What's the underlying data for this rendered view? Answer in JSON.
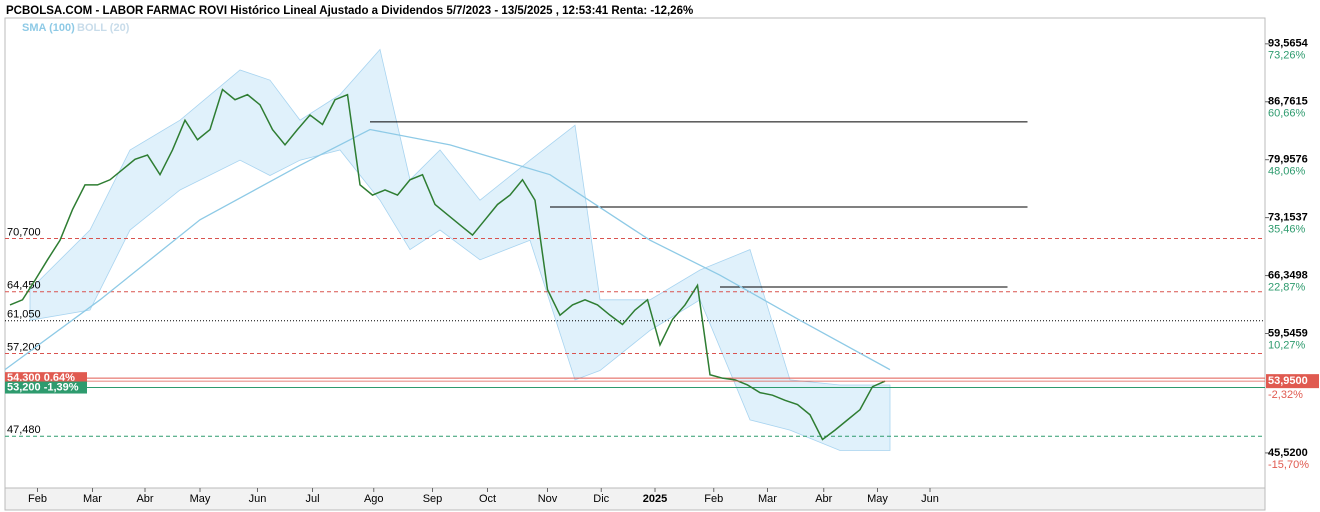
{
  "chart_data": {
    "type": "line",
    "title": "PCBOLSA.COM - LABOR FARMAC ROVI Histórico Lineal Ajustado a Dividendos 5/7/2023 - 13/5/2025 , 12:53:41 Renta: -12,26%",
    "xlim": [
      -0.4,
      100.4
    ],
    "ylim": [
      41.4,
      96.6
    ],
    "xticks": [
      {
        "value": 2.2,
        "label": "Feb"
      },
      {
        "value": 6.6,
        "label": "Mar"
      },
      {
        "value": 10.8,
        "label": "Abr"
      },
      {
        "value": 15.2,
        "label": "May"
      },
      {
        "value": 19.8,
        "label": "Jun"
      },
      {
        "value": 24.2,
        "label": "Jul"
      },
      {
        "value": 29.1,
        "label": "Ago"
      },
      {
        "value": 33.8,
        "label": "Sep"
      },
      {
        "value": 38.2,
        "label": "Oct"
      },
      {
        "value": 43,
        "label": "Nov"
      },
      {
        "value": 47.3,
        "label": "Dic"
      },
      {
        "value": 51.6,
        "label": "2025",
        "bold": true
      },
      {
        "value": 56.3,
        "label": "Feb"
      },
      {
        "value": 60.6,
        "label": "Mar"
      },
      {
        "value": 65.1,
        "label": "Abr"
      },
      {
        "value": 69.4,
        "label": "May"
      },
      {
        "value": 73.6,
        "label": "Jun"
      }
    ],
    "yticks": [
      {
        "value": 93.5654,
        "label": "93,5654"
      },
      {
        "value": 86.7615,
        "label": "86,7615"
      },
      {
        "value": 79.9576,
        "label": "79,9576"
      },
      {
        "value": 73.1537,
        "label": "73,1537"
      },
      {
        "value": 66.3498,
        "label": "66,3498"
      },
      {
        "value": 59.5459,
        "label": "59,5459"
      },
      {
        "value": 45.52,
        "label": "45,5200"
      }
    ],
    "ytick_pct": [
      "73,26%",
      "60,66%",
      "48,06%",
      "35,46%",
      "22,87%",
      "10,27%",
      "-15,70%"
    ],
    "price": {
      "color": "#2e7d32",
      "x": [
        0,
        1,
        2,
        3,
        4,
        5,
        6,
        7,
        8,
        9,
        10,
        11,
        12,
        13,
        14,
        15,
        16,
        17,
        18,
        19,
        20,
        21,
        22,
        23,
        24,
        25,
        26,
        27,
        28,
        29,
        30,
        31,
        32,
        33,
        34,
        35,
        36,
        37,
        38,
        39,
        40,
        41,
        42,
        43,
        44,
        45,
        46,
        47,
        48,
        49,
        50,
        51,
        52,
        53,
        54,
        55,
        56,
        57,
        58,
        59,
        60,
        61,
        62,
        63,
        64,
        65,
        66,
        67,
        68,
        69,
        70
      ],
      "values": [
        62.9,
        63.5,
        65.8,
        68.2,
        70.5,
        74.1,
        77.0,
        77.0,
        77.6,
        78.8,
        80.0,
        80.5,
        78.2,
        81.1,
        84.6,
        82.3,
        83.5,
        88.2,
        87.0,
        87.6,
        86.4,
        83.5,
        81.7,
        83.5,
        85.2,
        84.1,
        87.0,
        87.6,
        77.0,
        75.8,
        76.4,
        75.8,
        77.6,
        78.2,
        74.7,
        73.5,
        72.3,
        71.1,
        72.9,
        74.7,
        75.8,
        77.6,
        75.2,
        64.7,
        61.7,
        62.9,
        63.5,
        62.9,
        61.7,
        60.6,
        62.3,
        63.5,
        58.2,
        61.2,
        62.9,
        65.2,
        54.7,
        54.3,
        54.1,
        53.5,
        52.6,
        52.3,
        51.7,
        51.2,
        50.0,
        47.1,
        48.2,
        49.4,
        50.6,
        53.3,
        53.95
      ]
    },
    "sma": {
      "name": "SMA (100)",
      "color": "#8ecae6",
      "x": [
        -0.4,
        7.2,
        15.2,
        23.2,
        28.8,
        35.2,
        43.2,
        51.2,
        56.8,
        63.2,
        70.4
      ],
      "values": [
        55.3,
        63.5,
        72.9,
        79.3,
        83.5,
        81.7,
        78.2,
        70.5,
        66.4,
        61.1,
        55.3
      ]
    },
    "boll": {
      "name": "BOLL (20)",
      "color": "#d6ecfa",
      "x": [
        1.6,
        6.4,
        9.6,
        13.6,
        18.4,
        20.8,
        23.2,
        26.4,
        29.6,
        32,
        34.4,
        37.6,
        41.6,
        45.2,
        47.2,
        51.2,
        55.2,
        59.2,
        62.4,
        66.4,
        70.4
      ],
      "upper": [
        64.7,
        71.7,
        81.1,
        84.6,
        90.5,
        89.3,
        84.6,
        87.6,
        92.9,
        77.6,
        81.1,
        75.2,
        79.9,
        84.0,
        63.5,
        63.5,
        67.0,
        69.4,
        54.1,
        53.5,
        53.5
      ],
      "lower": [
        61.1,
        62.3,
        71.7,
        76.4,
        79.9,
        78.1,
        79.9,
        81.1,
        75.2,
        69.4,
        71.7,
        68.2,
        70.5,
        54.1,
        55.2,
        59.9,
        63.5,
        49.4,
        48.2,
        45.8,
        45.8
      ]
    },
    "trend_lines": [
      {
        "value": 84.4,
        "x": [
          28.8,
          81.4
        ]
      },
      {
        "value": 74.4,
        "x": [
          43.2,
          81.4
        ]
      },
      {
        "value": 65.0,
        "x": [
          56.8,
          79.8
        ]
      }
    ],
    "levels": [
      {
        "value": 70.7,
        "label": "70,700",
        "color": "#d9534f",
        "style": "dashed"
      },
      {
        "value": 64.45,
        "label": "64,450",
        "color": "#d9534f",
        "style": "dashed"
      },
      {
        "value": 61.05,
        "label": "61,050",
        "color": "#000000",
        "style": "dotted"
      },
      {
        "value": 57.2,
        "label": "57,200",
        "color": "#d9534f",
        "style": "dashed"
      },
      {
        "value": 54.3,
        "label": "54,300 0,64%",
        "color": "#e05a50",
        "style": "box"
      },
      {
        "value": 53.2,
        "label": "53,200 -1,39%",
        "color": "#2e9b6e",
        "style": "box"
      },
      {
        "value": 47.48,
        "label": "47,480",
        "color": "#2e9b6e",
        "style": "dashed"
      }
    ],
    "current": {
      "value": 53.95,
      "label": "53,9500",
      "change": "-2,32%",
      "color": "#e05a50"
    }
  }
}
